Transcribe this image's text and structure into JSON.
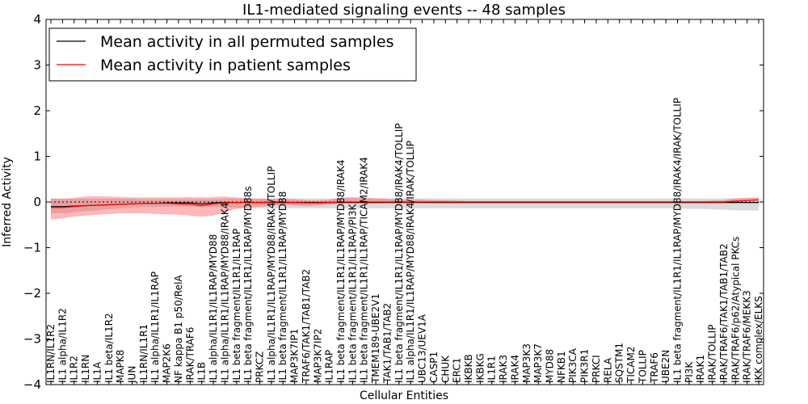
{
  "chart_data": {
    "type": "line",
    "title": "IL1-mediated signaling events -- 48 samples",
    "xlabel": "Cellular Entities",
    "ylabel": "Inferred Activity",
    "ylim": [
      -4,
      4
    ],
    "yticks": [
      4,
      3,
      2,
      1,
      0,
      -1,
      -2,
      -3,
      -4
    ],
    "ytick_labels": [
      "4",
      "3",
      "2",
      "1",
      "0",
      "−1",
      "−2",
      "−3",
      "−4"
    ],
    "grid": false,
    "legend_position": "top-left",
    "categories": [
      "IL1RN/IL1R2",
      "IL1 alpha/IL1R2",
      "IL1R2",
      "IL1RN",
      "IL1A",
      "IL1 beta/IL1R2",
      "MAPK8",
      "JUN",
      "IL1RN/IL1R1",
      "IL1 alpha/IL1R1/IL1RAP",
      "MAP2K6",
      "NF kappa B1 p50/RelA",
      "IRAK/TRAF6",
      "IL1B",
      "IL1 alpha/IL1R1/IL1RAP/MYD88",
      "IL1 alpha/IL1R1/IL1RAP/MYD88/IRAK4",
      "IL1 beta fragment/IL1R1/IL1RAP",
      "IL1 beta fragment/IL1R1/IL1RAP/MYD88s",
      "PRKCZ",
      "IL1 alpha/IL1R1/IL1RAP/MYD88/IRAK4/TOLLIP",
      "IL1 beta fragment/IL1R1/IL1RAP/MYD88",
      "MAP3K7IP1",
      "TRAF6/TAK1/TAB1/TAB2",
      "MAP3K7IP2",
      "IL1RAP",
      "IL1 beta fragment/IL1R1/IL1RAP/MYD88/IRAK4",
      "IL1 beta fragment/IL1R1/IL1RAP/PI3K",
      "IL1 beta fragment/IL1R1/IL1RAP/TICAM2/IRAK4",
      "TMEM189-UBE2V1",
      "TAK1/TAB1/TAB2",
      "IL1 beta fragment/IL1R1/IL1RAP/MYD88/IRAK4/TOLLIP",
      "IL1 alpha/IL1R1/IL1RAP/MYD88/IRAK4/IRAK/TOLLIP",
      "UBC13/UEV1A",
      "CASP1",
      "CHUK",
      "ERC1",
      "IKBKB",
      "IKBKG",
      "IL1R1",
      "IRAK3",
      "IRAK4",
      "MAP3K3",
      "MAP3K7",
      "MYD88",
      "NFKB1",
      "PIK3CA",
      "PIK3R1",
      "PRKCI",
      "RELA",
      "SQSTM1",
      "TICAM2",
      "TOLLIP",
      "TRAF6",
      "UBE2N",
      "IL1 beta fragment/IL1R1/IL1RAP/MYD88/IRAK4/IRAK/TOLLIP",
      "PI3K",
      "IRAK1",
      "IRAK/TOLLIP",
      "IRAK/TRAF6/TAK1/TAB1/TAB2",
      "IRAK/TRAF6/p62/Atypical PKCs",
      "IRAK/TRAF6/MEKK3",
      "IKK complex/ELKS"
    ],
    "series": [
      {
        "name": "Mean activity in all permuted samples",
        "color": "#000000",
        "values": [
          -0.1,
          -0.1,
          -0.09,
          -0.08,
          -0.07,
          -0.06,
          -0.05,
          -0.04,
          -0.03,
          -0.03,
          -0.02,
          -0.02,
          -0.02,
          -0.04,
          -0.02,
          -0.01,
          -0.01,
          -0.01,
          -0.01,
          -0.01,
          -0.01,
          -0.01,
          -0.01,
          -0.01,
          -0.01,
          -0.01,
          -0.01,
          -0.01,
          -0.01,
          -0.01,
          -0.01,
          -0.01,
          -0.01,
          -0.01,
          -0.01,
          -0.01,
          -0.01,
          -0.01,
          -0.01,
          -0.01,
          -0.01,
          -0.01,
          -0.01,
          -0.01,
          -0.01,
          -0.01,
          -0.01,
          -0.01,
          -0.01,
          -0.01,
          -0.01,
          -0.01,
          -0.01,
          -0.01,
          -0.01,
          -0.01,
          -0.01,
          -0.01,
          -0.01,
          -0.01,
          -0.01,
          -0.01
        ],
        "band_upper": [
          0.07,
          0.07,
          0.07,
          0.07,
          0.07,
          0.07,
          0.07,
          0.07,
          0.06,
          0.06,
          0.06,
          0.06,
          0.06,
          0.06,
          0.06,
          0.07,
          0.07,
          0.07,
          0.08,
          0.08,
          0.08,
          0.08,
          0.08,
          0.08,
          0.08,
          0.08,
          0.08,
          0.08,
          0.08,
          0.08,
          0.08,
          0.08,
          0.08,
          0.08,
          0.08,
          0.08,
          0.08,
          0.08,
          0.08,
          0.08,
          0.08,
          0.08,
          0.08,
          0.08,
          0.08,
          0.08,
          0.08,
          0.08,
          0.08,
          0.08,
          0.08,
          0.08,
          0.08,
          0.08,
          0.08,
          0.08,
          0.08,
          0.08,
          0.08,
          0.08,
          0.08,
          0.08
        ],
        "band_lower": [
          -0.25,
          -0.25,
          -0.22,
          -0.2,
          -0.18,
          -0.16,
          -0.14,
          -0.12,
          -0.11,
          -0.11,
          -0.1,
          -0.1,
          -0.1,
          -0.12,
          -0.11,
          -0.12,
          -0.13,
          -0.14,
          -0.14,
          -0.14,
          -0.14,
          -0.14,
          -0.14,
          -0.14,
          -0.14,
          -0.14,
          -0.14,
          -0.14,
          -0.14,
          -0.14,
          -0.14,
          -0.14,
          -0.14,
          -0.14,
          -0.14,
          -0.14,
          -0.14,
          -0.14,
          -0.14,
          -0.14,
          -0.14,
          -0.14,
          -0.14,
          -0.14,
          -0.14,
          -0.14,
          -0.14,
          -0.14,
          -0.14,
          -0.14,
          -0.14,
          -0.14,
          -0.14,
          -0.14,
          -0.14,
          -0.15,
          -0.15,
          -0.16,
          -0.17,
          -0.18,
          -0.18,
          -0.19
        ]
      },
      {
        "name": "Mean activity in patient samples",
        "color": "#ff0000",
        "values": [
          -0.12,
          -0.12,
          -0.1,
          -0.08,
          -0.07,
          -0.06,
          -0.05,
          -0.04,
          -0.03,
          -0.03,
          -0.03,
          -0.04,
          -0.05,
          -0.08,
          -0.04,
          -0.02,
          -0.01,
          -0.01,
          -0.01,
          0.0,
          0.0,
          -0.01,
          -0.02,
          -0.02,
          -0.01,
          0.0,
          0.0,
          0.0,
          0.0,
          0.0,
          0.0,
          0.0,
          0.0,
          0.0,
          0.0,
          0.0,
          0.0,
          0.0,
          0.0,
          0.0,
          0.0,
          0.0,
          0.0,
          0.0,
          0.0,
          0.0,
          0.0,
          0.0,
          0.0,
          0.0,
          0.0,
          0.0,
          0.0,
          0.0,
          0.0,
          0.0,
          0.0,
          0.0,
          0.0,
          0.02,
          0.03,
          0.05
        ],
        "band_upper": [
          0.08,
          0.07,
          0.09,
          0.12,
          0.13,
          0.12,
          0.11,
          0.1,
          0.1,
          0.1,
          0.1,
          0.1,
          0.11,
          0.1,
          0.11,
          0.12,
          0.1,
          0.08,
          0.07,
          0.07,
          0.07,
          0.06,
          0.04,
          0.03,
          0.05,
          0.1,
          0.11,
          0.1,
          0.08,
          0.07,
          0.05,
          0.05,
          0.05,
          0.04,
          0.04,
          0.03,
          0.02,
          0.02,
          0.02,
          0.02,
          0.02,
          0.02,
          0.02,
          0.02,
          0.02,
          0.02,
          0.02,
          0.02,
          0.02,
          0.02,
          0.02,
          0.02,
          0.02,
          0.02,
          0.02,
          0.02,
          0.02,
          0.03,
          0.04,
          0.08,
          0.09,
          0.1
        ],
        "band_lower": [
          -0.38,
          -0.36,
          -0.32,
          -0.3,
          -0.28,
          -0.26,
          -0.25,
          -0.25,
          -0.25,
          -0.26,
          -0.27,
          -0.28,
          -0.3,
          -0.32,
          -0.3,
          -0.22,
          -0.15,
          -0.12,
          -0.1,
          -0.08,
          -0.06,
          -0.08,
          -0.09,
          -0.08,
          -0.05,
          -0.03,
          -0.03,
          -0.03,
          -0.03,
          -0.02,
          -0.02,
          -0.02,
          -0.02,
          -0.02,
          -0.02,
          -0.02,
          -0.02,
          -0.02,
          -0.02,
          -0.02,
          -0.02,
          -0.02,
          -0.02,
          -0.02,
          -0.02,
          -0.02,
          -0.02,
          -0.02,
          -0.02,
          -0.02,
          -0.02,
          -0.02,
          -0.02,
          -0.02,
          -0.02,
          -0.02,
          -0.02,
          -0.02,
          -0.01,
          0.0,
          0.01,
          0.02
        ]
      }
    ]
  }
}
